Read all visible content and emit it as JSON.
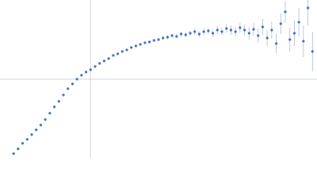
{
  "chart_data": {
    "type": "scatter",
    "color": "#4a72c0",
    "error_color": "#aab9dd",
    "grid": true,
    "xlim": [
      0,
      0.35
    ],
    "ylim": [
      0,
      2
    ],
    "xticks": [
      0.1
    ],
    "yticks": [
      1
    ],
    "x": [
      0.015,
      0.02,
      0.025,
      0.03,
      0.035,
      0.04,
      0.045,
      0.05,
      0.055,
      0.06,
      0.065,
      0.07,
      0.075,
      0.08,
      0.085,
      0.09,
      0.095,
      0.1,
      0.105,
      0.11,
      0.115,
      0.12,
      0.125,
      0.13,
      0.135,
      0.14,
      0.145,
      0.15,
      0.155,
      0.16,
      0.165,
      0.17,
      0.175,
      0.18,
      0.185,
      0.19,
      0.195,
      0.2,
      0.205,
      0.21,
      0.215,
      0.22,
      0.225,
      0.23,
      0.235,
      0.24,
      0.245,
      0.25,
      0.255,
      0.26,
      0.265,
      0.27,
      0.275,
      0.28,
      0.285,
      0.29,
      0.295,
      0.3,
      0.305,
      0.31,
      0.315,
      0.32,
      0.325,
      0.33,
      0.335,
      0.34,
      0.345
    ],
    "values": [
      0.06,
      0.12,
      0.19,
      0.24,
      0.3,
      0.36,
      0.42,
      0.49,
      0.57,
      0.65,
      0.72,
      0.8,
      0.88,
      0.94,
      1.0,
      1.05,
      1.09,
      1.12,
      1.16,
      1.2,
      1.23,
      1.26,
      1.3,
      1.32,
      1.35,
      1.37,
      1.4,
      1.42,
      1.44,
      1.46,
      1.47,
      1.49,
      1.5,
      1.52,
      1.53,
      1.55,
      1.54,
      1.57,
      1.56,
      1.58,
      1.6,
      1.57,
      1.6,
      1.61,
      1.58,
      1.62,
      1.6,
      1.64,
      1.62,
      1.6,
      1.65,
      1.62,
      1.58,
      1.63,
      1.55,
      1.66,
      1.52,
      1.62,
      1.45,
      1.7,
      1.85,
      1.5,
      1.58,
      1.72,
      1.48,
      1.9,
      1.35
    ],
    "errors": [
      0.01,
      0.01,
      0.01,
      0.01,
      0.01,
      0.01,
      0.01,
      0.01,
      0.01,
      0.01,
      0.01,
      0.01,
      0.01,
      0.01,
      0.01,
      0.01,
      0.01,
      0.01,
      0.01,
      0.01,
      0.01,
      0.01,
      0.01,
      0.01,
      0.01,
      0.01,
      0.015,
      0.015,
      0.015,
      0.015,
      0.02,
      0.02,
      0.02,
      0.02,
      0.025,
      0.025,
      0.025,
      0.03,
      0.03,
      0.03,
      0.035,
      0.035,
      0.04,
      0.04,
      0.045,
      0.05,
      0.05,
      0.055,
      0.06,
      0.06,
      0.065,
      0.07,
      0.08,
      0.08,
      0.09,
      0.1,
      0.1,
      0.11,
      0.12,
      0.13,
      0.14,
      0.15,
      0.16,
      0.18,
      0.2,
      0.22,
      0.25
    ]
  }
}
